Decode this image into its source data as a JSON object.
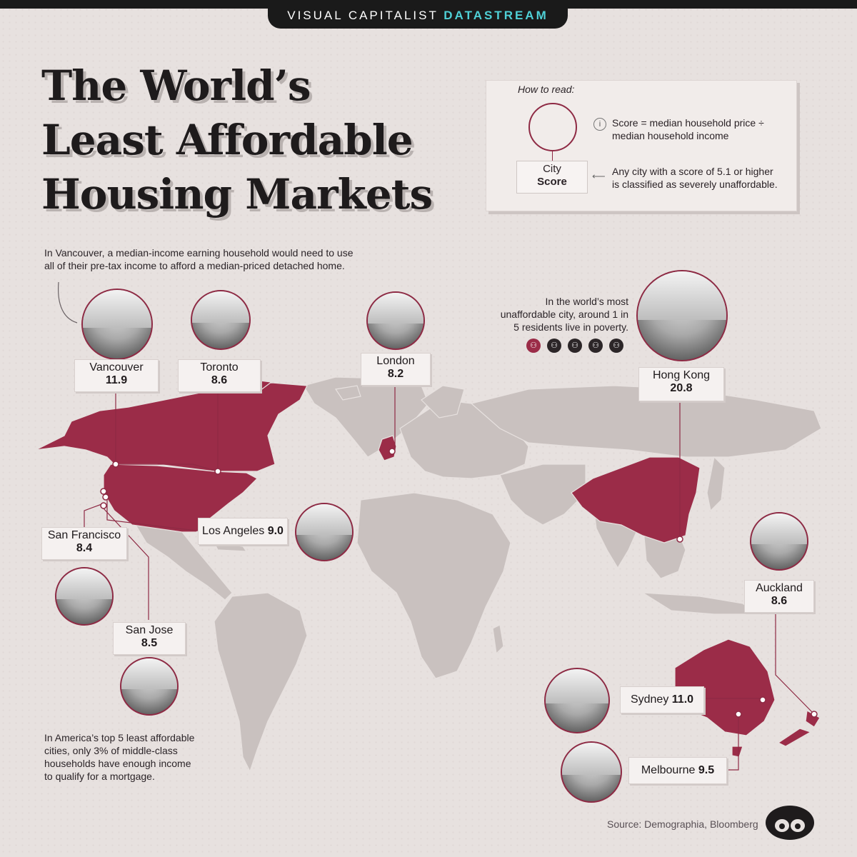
{
  "brand": {
    "prefix": "VISUAL CAPITALIST",
    "suffix": "DATASTREAM"
  },
  "title": {
    "line1": "The World’s",
    "line2": "Least Affordable",
    "line3": "Housing Markets"
  },
  "legend": {
    "how_to_read": "How to read:",
    "city": "City",
    "score": "Score",
    "formula_line1": "Score = median household price ÷",
    "formula_line2": "median household income",
    "threshold_line1": "Any city with a score of 5.1 or higher",
    "threshold_line2": "is classified as severely unaffordable."
  },
  "notes": {
    "vancouver_line1": "In Vancouver, a median-income earning household would need to use",
    "vancouver_line2": "all of their pre-tax income to afford a median-priced detached home.",
    "hongkong_line1": "In the world’s most",
    "hongkong_line2": "unaffordable city, around 1 in",
    "hongkong_line3": "5 residents live in poverty.",
    "america_line1": "In America’s top 5 least affordable",
    "america_line2": "cities, only 3% of middle-class",
    "america_line3": "households have enough income",
    "america_line4": "to qualify for a mortgage."
  },
  "poverty_icons": {
    "total": 5,
    "highlighted": 1,
    "icon": "people-icon"
  },
  "cities": [
    {
      "name": "Vancouver",
      "score": "11.9"
    },
    {
      "name": "Toronto",
      "score": "8.6"
    },
    {
      "name": "London",
      "score": "8.2"
    },
    {
      "name": "Hong Kong",
      "score": "20.8"
    },
    {
      "name": "Los Angeles",
      "score": "9.0"
    },
    {
      "name": "San Francisco",
      "score": "8.4"
    },
    {
      "name": "San Jose",
      "score": "8.5"
    },
    {
      "name": "Auckland",
      "score": "8.6"
    },
    {
      "name": "Sydney",
      "score": "11.0"
    },
    {
      "name": "Melbourne",
      "score": "9.5"
    }
  ],
  "source": "Source: Demographia, Bloomberg",
  "colors": {
    "highlight": "#9b2c48",
    "land": "#c9c1bf",
    "background": "#e7e1df",
    "border": "#8e2a44"
  }
}
